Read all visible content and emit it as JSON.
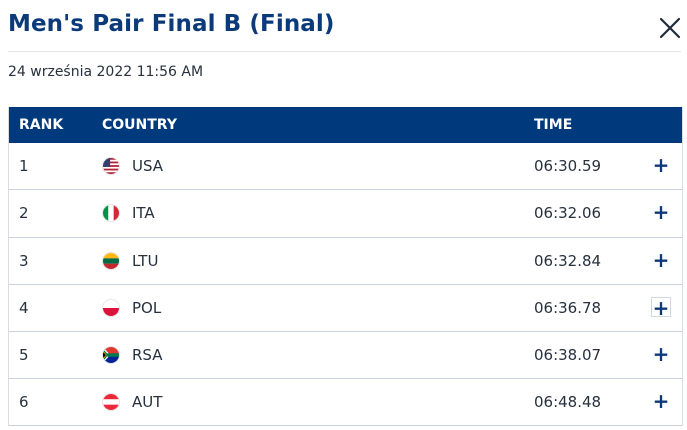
{
  "header": {
    "title": "Men's Pair Final B (Final)",
    "close_icon": "close-icon"
  },
  "date": "24 września 2022 11:56 AM",
  "table": {
    "columns": {
      "rank": "RANK",
      "country": "COUNTRY",
      "time": "TIME"
    },
    "rows": [
      {
        "rank": "1",
        "country": "USA",
        "time": "06:30.59",
        "flag_icon": "usa-flag-icon",
        "expand": "+"
      },
      {
        "rank": "2",
        "country": "ITA",
        "time": "06:32.06",
        "flag_icon": "italy-flag-icon",
        "expand": "+"
      },
      {
        "rank": "3",
        "country": "LTU",
        "time": "06:32.84",
        "flag_icon": "lithuania-flag-icon",
        "expand": "+"
      },
      {
        "rank": "4",
        "country": "POL",
        "time": "06:36.78",
        "flag_icon": "poland-flag-icon",
        "expand": "+"
      },
      {
        "rank": "5",
        "country": "RSA",
        "time": "06:38.07",
        "flag_icon": "south-africa-flag-icon",
        "expand": "+"
      },
      {
        "rank": "6",
        "country": "AUT",
        "time": "06:48.48",
        "flag_icon": "austria-flag-icon",
        "expand": "+"
      }
    ]
  },
  "colors": {
    "brand": "#0b3a7a",
    "header_bg": "#003a7d"
  }
}
